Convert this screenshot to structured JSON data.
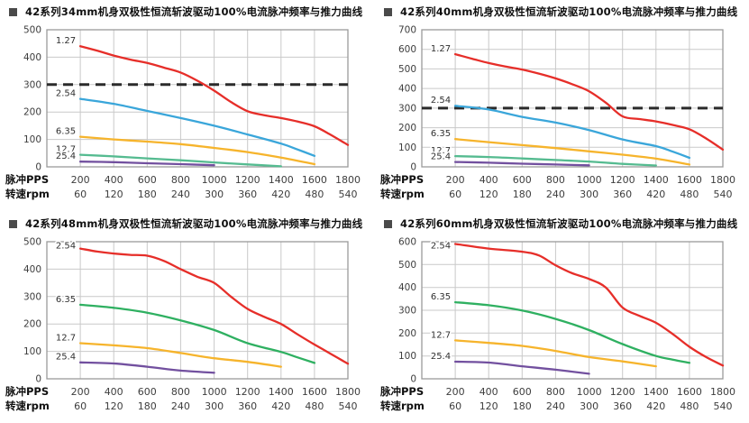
{
  "axis_headers": {
    "pps": "脉冲PPS",
    "rpm": "转速rpm"
  },
  "x_ticks_pps": [
    200,
    400,
    600,
    800,
    1000,
    1200,
    1400,
    1600,
    1800
  ],
  "x_ticks_rpm": [
    60,
    120,
    180,
    240,
    300,
    360,
    420,
    480,
    540
  ],
  "colors": {
    "red": "#e62e29",
    "blue": "#3aa6da",
    "yellow": "#f6b42c",
    "green_top": "#55bb90",
    "green_bottom": "#2fb061",
    "purple": "#72509f",
    "grid": "#c9c9c9",
    "border": "#9a9a9a",
    "dashed": "#2b2b2b",
    "tick_text": "#3d3d3d",
    "title_text": "#101010"
  },
  "chart_data": [
    {
      "type": "line",
      "title": "42系列34mm机身双极性恒流斩波驱动100%电流脉冲频率与推力曲线",
      "xlabel": "脉冲PPS / 转速rpm",
      "ylabel": "",
      "xmax": 1800,
      "ylim": [
        0,
        500
      ],
      "ytick_step": 100,
      "grid": true,
      "dashed_line_y": 300,
      "legend_position": "inline-left",
      "series": [
        {
          "name": "1.27",
          "color": "#e62e29",
          "points": [
            [
              200,
              440
            ],
            [
              300,
              424
            ],
            [
              400,
              406
            ],
            [
              500,
              391
            ],
            [
              600,
              379
            ],
            [
              700,
              362
            ],
            [
              800,
              344
            ],
            [
              900,
              314
            ],
            [
              1000,
              278
            ],
            [
              1100,
              237
            ],
            [
              1200,
              203
            ],
            [
              1300,
              188
            ],
            [
              1400,
              178
            ],
            [
              1500,
              165
            ],
            [
              1600,
              148
            ],
            [
              1700,
              116
            ],
            [
              1800,
              80
            ]
          ]
        },
        {
          "name": "2.54",
          "color": "#3aa6da",
          "points": [
            [
              200,
              248
            ],
            [
              400,
              230
            ],
            [
              600,
              204
            ],
            [
              800,
              178
            ],
            [
              1000,
              150
            ],
            [
              1200,
              118
            ],
            [
              1400,
              85
            ],
            [
              1500,
              63
            ],
            [
              1600,
              40
            ]
          ]
        },
        {
          "name": "6.35",
          "color": "#f6b42c",
          "points": [
            [
              200,
              110
            ],
            [
              400,
              100
            ],
            [
              600,
              92
            ],
            [
              800,
              83
            ],
            [
              1000,
              69
            ],
            [
              1200,
              54
            ],
            [
              1400,
              34
            ],
            [
              1600,
              10
            ]
          ]
        },
        {
          "name": "12.7",
          "color": "#55bb90",
          "points": [
            [
              200,
              44
            ],
            [
              400,
              38
            ],
            [
              600,
              31
            ],
            [
              800,
              24
            ],
            [
              1000,
              16
            ],
            [
              1200,
              9
            ],
            [
              1400,
              2
            ]
          ]
        },
        {
          "name": "25.4",
          "color": "#72509f",
          "points": [
            [
              200,
              19
            ],
            [
              400,
              17
            ],
            [
              600,
              13
            ],
            [
              800,
              10
            ],
            [
              1000,
              6
            ]
          ]
        }
      ]
    },
    {
      "type": "line",
      "title": "42系列40mm机身双极性恒流斩波驱动100%电流脉冲频率与推力曲线",
      "xlabel": "脉冲PPS / 转速rpm",
      "ylabel": "",
      "xmax": 1800,
      "ylim": [
        0,
        700
      ],
      "ytick_step": 100,
      "grid": true,
      "dashed_line_y": 300,
      "legend_position": "inline-left",
      "series": [
        {
          "name": "1.27",
          "color": "#e62e29",
          "points": [
            [
              200,
              575
            ],
            [
              300,
              552
            ],
            [
              400,
              530
            ],
            [
              500,
              512
            ],
            [
              600,
              497
            ],
            [
              700,
              476
            ],
            [
              800,
              452
            ],
            [
              900,
              422
            ],
            [
              1000,
              386
            ],
            [
              1100,
              328
            ],
            [
              1200,
              258
            ],
            [
              1300,
              244
            ],
            [
              1400,
              232
            ],
            [
              1500,
              214
            ],
            [
              1600,
              192
            ],
            [
              1700,
              145
            ],
            [
              1800,
              88
            ]
          ]
        },
        {
          "name": "2.54",
          "color": "#3aa6da",
          "points": [
            [
              200,
              312
            ],
            [
              400,
              293
            ],
            [
              600,
              255
            ],
            [
              800,
              226
            ],
            [
              1000,
              188
            ],
            [
              1200,
              140
            ],
            [
              1400,
              106
            ],
            [
              1500,
              78
            ],
            [
              1600,
              46
            ]
          ]
        },
        {
          "name": "6.35",
          "color": "#f6b42c",
          "points": [
            [
              200,
              142
            ],
            [
              400,
              126
            ],
            [
              600,
              111
            ],
            [
              800,
              96
            ],
            [
              1000,
              79
            ],
            [
              1200,
              62
            ],
            [
              1400,
              42
            ],
            [
              1600,
              12
            ]
          ]
        },
        {
          "name": "12.7",
          "color": "#55bb90",
          "points": [
            [
              200,
              55
            ],
            [
              400,
              50
            ],
            [
              600,
              43
            ],
            [
              800,
              35
            ],
            [
              1000,
              27
            ],
            [
              1200,
              15
            ],
            [
              1400,
              7
            ]
          ]
        },
        {
          "name": "25.4",
          "color": "#72509f",
          "points": [
            [
              200,
              25
            ],
            [
              400,
              21
            ],
            [
              600,
              16
            ],
            [
              800,
              12
            ],
            [
              1000,
              8
            ]
          ]
        }
      ]
    },
    {
      "type": "line",
      "title": "42系列48mm机身双极性恒流斩波驱动100%电流脉冲频率与推力曲线",
      "xlabel": "脉冲PPS / 转速rpm",
      "ylabel": "",
      "xmax": 1800,
      "ylim": [
        0,
        500
      ],
      "ytick_step": 100,
      "grid": true,
      "dashed_line_y": null,
      "legend_position": "inline-left",
      "series": [
        {
          "name": "2.54",
          "color": "#e62e29",
          "points": [
            [
              200,
              475
            ],
            [
              300,
              464
            ],
            [
              400,
              457
            ],
            [
              500,
              452
            ],
            [
              600,
              449
            ],
            [
              700,
              430
            ],
            [
              800,
              400
            ],
            [
              900,
              372
            ],
            [
              1000,
              350
            ],
            [
              1100,
              300
            ],
            [
              1200,
              255
            ],
            [
              1300,
              226
            ],
            [
              1400,
              200
            ],
            [
              1500,
              162
            ],
            [
              1600,
              125
            ],
            [
              1700,
              90
            ],
            [
              1800,
              55
            ]
          ]
        },
        {
          "name": "6.35",
          "color": "#2fb061",
          "points": [
            [
              200,
              270
            ],
            [
              400,
              259
            ],
            [
              600,
              241
            ],
            [
              800,
              213
            ],
            [
              1000,
              178
            ],
            [
              1200,
              130
            ],
            [
              1400,
              98
            ],
            [
              1500,
              78
            ],
            [
              1600,
              58
            ]
          ]
        },
        {
          "name": "12.7",
          "color": "#f6b42c",
          "points": [
            [
              200,
              130
            ],
            [
              400,
              122
            ],
            [
              600,
              112
            ],
            [
              800,
              94
            ],
            [
              1000,
              75
            ],
            [
              1200,
              62
            ],
            [
              1400,
              44
            ]
          ]
        },
        {
          "name": "25.4",
          "color": "#72509f",
          "points": [
            [
              200,
              60
            ],
            [
              400,
              56
            ],
            [
              600,
              44
            ],
            [
              800,
              30
            ],
            [
              1000,
              22
            ]
          ]
        }
      ]
    },
    {
      "type": "line",
      "title": "42系列60mm机身双极性恒流斩波驱动100%电流脉冲频率与推力曲线",
      "xlabel": "脉冲PPS / 转速rpm",
      "ylabel": "",
      "xmax": 1800,
      "ylim": [
        0,
        600
      ],
      "ytick_step": 100,
      "grid": true,
      "dashed_line_y": null,
      "legend_position": "inline-left",
      "series": [
        {
          "name": "2.54",
          "color": "#e62e29",
          "points": [
            [
              200,
              590
            ],
            [
              400,
              570
            ],
            [
              600,
              556
            ],
            [
              700,
              540
            ],
            [
              800,
              497
            ],
            [
              900,
              462
            ],
            [
              1000,
              437
            ],
            [
              1100,
              400
            ],
            [
              1200,
              312
            ],
            [
              1300,
              276
            ],
            [
              1400,
              245
            ],
            [
              1500,
              196
            ],
            [
              1600,
              140
            ],
            [
              1700,
              95
            ],
            [
              1800,
              58
            ]
          ]
        },
        {
          "name": "6.35",
          "color": "#2fb061",
          "points": [
            [
              200,
              335
            ],
            [
              400,
              322
            ],
            [
              600,
              299
            ],
            [
              800,
              262
            ],
            [
              1000,
              213
            ],
            [
              1200,
              152
            ],
            [
              1400,
              100
            ],
            [
              1500,
              84
            ],
            [
              1600,
              70
            ]
          ]
        },
        {
          "name": "12.7",
          "color": "#f6b42c",
          "points": [
            [
              200,
              168
            ],
            [
              400,
              157
            ],
            [
              600,
              144
            ],
            [
              800,
              122
            ],
            [
              1000,
              95
            ],
            [
              1200,
              76
            ],
            [
              1400,
              55
            ]
          ]
        },
        {
          "name": "25.4",
          "color": "#72509f",
          "points": [
            [
              200,
              75
            ],
            [
              400,
              71
            ],
            [
              600,
              55
            ],
            [
              800,
              40
            ],
            [
              1000,
              22
            ]
          ]
        }
      ]
    }
  ]
}
